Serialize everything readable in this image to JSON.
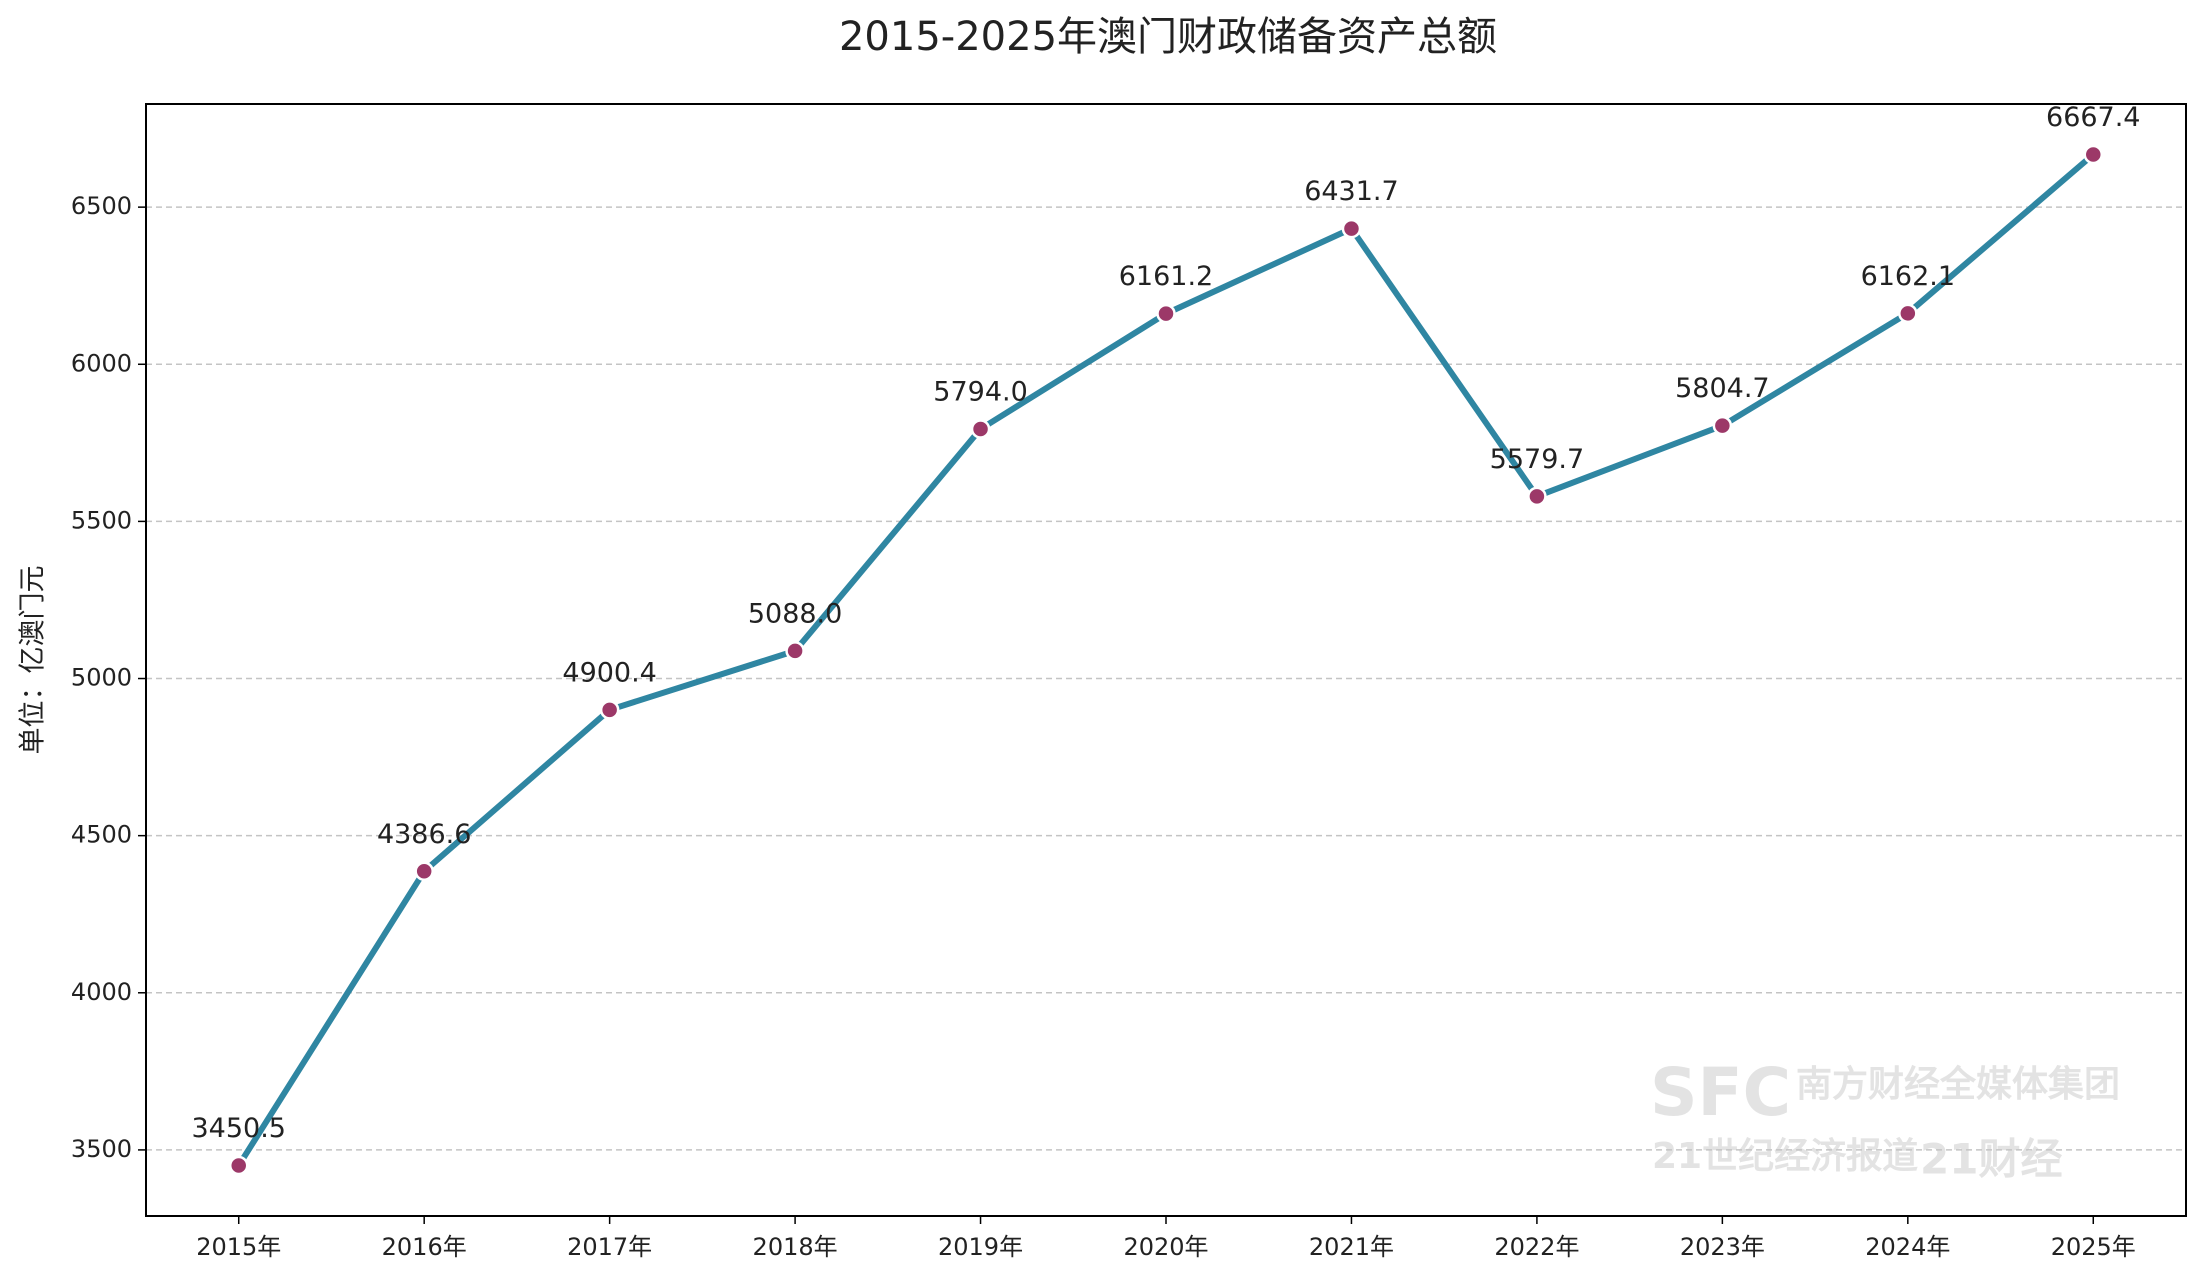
{
  "chart_data": {
    "type": "line",
    "title": "2015-2025年澳门财政储备资产总额",
    "y_label": "单位：亿澳门元",
    "categories": [
      "2015年",
      "2016年",
      "2017年",
      "2018年",
      "2019年",
      "2020年",
      "2021年",
      "2022年",
      "2023年",
      "2024年",
      "2025年"
    ],
    "values": [
      3450.5,
      4386.6,
      4900.4,
      5088.0,
      5794.0,
      6161.2,
      6431.7,
      5579.7,
      5804.7,
      6162.1,
      6667.4
    ],
    "value_labels": [
      "3450.5",
      "4386.6",
      "4900.4",
      "5088.0",
      "5794.0",
      "6161.2",
      "6431.7",
      "5579.7",
      "5804.7",
      "6162.1",
      "6667.4"
    ],
    "color": "#2f86a2",
    "marker_color": "#9c3868",
    "ylim": [
      3289.7,
      6828.2
    ],
    "yticks": [
      3500,
      4000,
      4500,
      5000,
      5500,
      6000,
      6500
    ],
    "grid": true,
    "watermark": [
      "SFC",
      "南方财经全媒体集团",
      "21世纪经济报道",
      "21财经"
    ]
  }
}
